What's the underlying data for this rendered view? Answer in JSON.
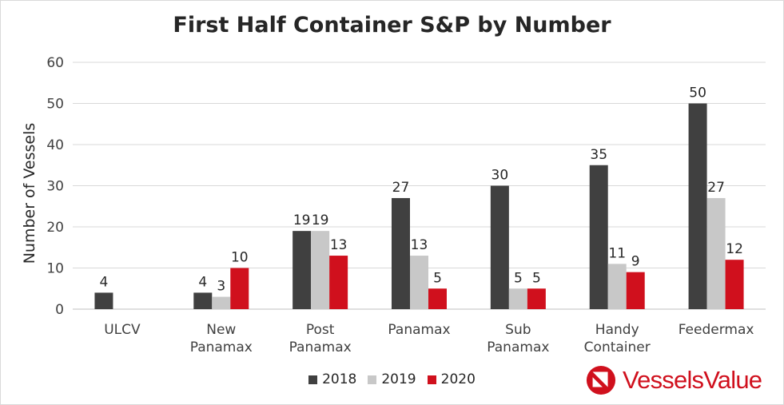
{
  "colors": {
    "2018": "#404040",
    "2019": "#c8c8c8",
    "2020": "#d0101d",
    "brand": "#d0101d"
  },
  "logo": {
    "text": "VesselsValue",
    "icon": "vesselsvalue-logo-icon"
  },
  "chart_data": {
    "type": "bar",
    "title": "First Half Container S&P by Number",
    "xlabel": "",
    "ylabel": "Number of Vessels",
    "ylim": [
      0,
      60
    ],
    "yticks": [
      0,
      10,
      20,
      30,
      40,
      50,
      60
    ],
    "grid": true,
    "legend_position": "bottom",
    "categories": [
      [
        "ULCV"
      ],
      [
        "New",
        "Panamax"
      ],
      [
        "Post",
        "Panamax"
      ],
      [
        "Panamax"
      ],
      [
        "Sub",
        "Panamax"
      ],
      [
        "Handy",
        "Container"
      ],
      [
        "Feedermax"
      ]
    ],
    "series": [
      {
        "name": "2018",
        "color": "#404040",
        "values": [
          4,
          4,
          19,
          27,
          30,
          35,
          50
        ]
      },
      {
        "name": "2019",
        "color": "#c8c8c8",
        "values": [
          null,
          3,
          19,
          13,
          5,
          11,
          27
        ]
      },
      {
        "name": "2020",
        "color": "#d0101d",
        "values": [
          null,
          10,
          13,
          5,
          5,
          9,
          12
        ]
      }
    ]
  }
}
